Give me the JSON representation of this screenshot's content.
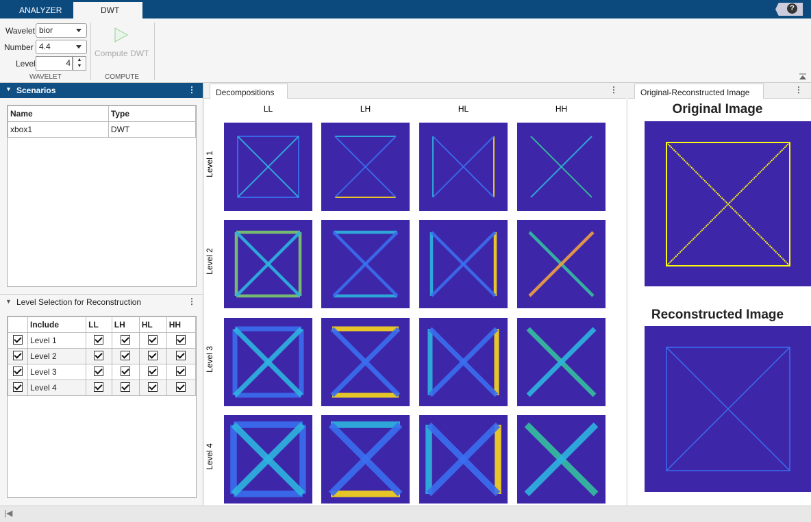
{
  "tabs": [
    "ANALYZER",
    "DWT"
  ],
  "help": "?",
  "toolbar": {
    "wavelet_label": "Wavelet",
    "wavelet": "bior",
    "number_label": "Number",
    "number": "4.4",
    "level_label": "Level",
    "level": "4",
    "wavelet_section": "WAVELET",
    "compute_button": "Compute DWT",
    "compute_section": "COMPUTE"
  },
  "scenarios": {
    "title": "Scenarios",
    "columns": [
      "Name",
      "Type"
    ],
    "rows": [
      [
        "xbox1",
        "DWT"
      ]
    ]
  },
  "level_selection": {
    "title": "Level Selection for Reconstruction",
    "columns": [
      "Include",
      "LL",
      "LH",
      "HL",
      "HH"
    ],
    "rows": [
      "Level 1",
      "Level 2",
      "Level 3",
      "Level 4"
    ]
  },
  "decompositions": {
    "title": "Decompositions",
    "columns": [
      "LL",
      "LH",
      "HL",
      "HH"
    ],
    "rows": [
      "Level 1",
      "Level 2",
      "Level 3",
      "Level 4"
    ]
  },
  "images": {
    "tab": "Original-Reconstructed Image",
    "original_title": "Original Image",
    "reconstructed_title": "Reconstructed Image"
  }
}
